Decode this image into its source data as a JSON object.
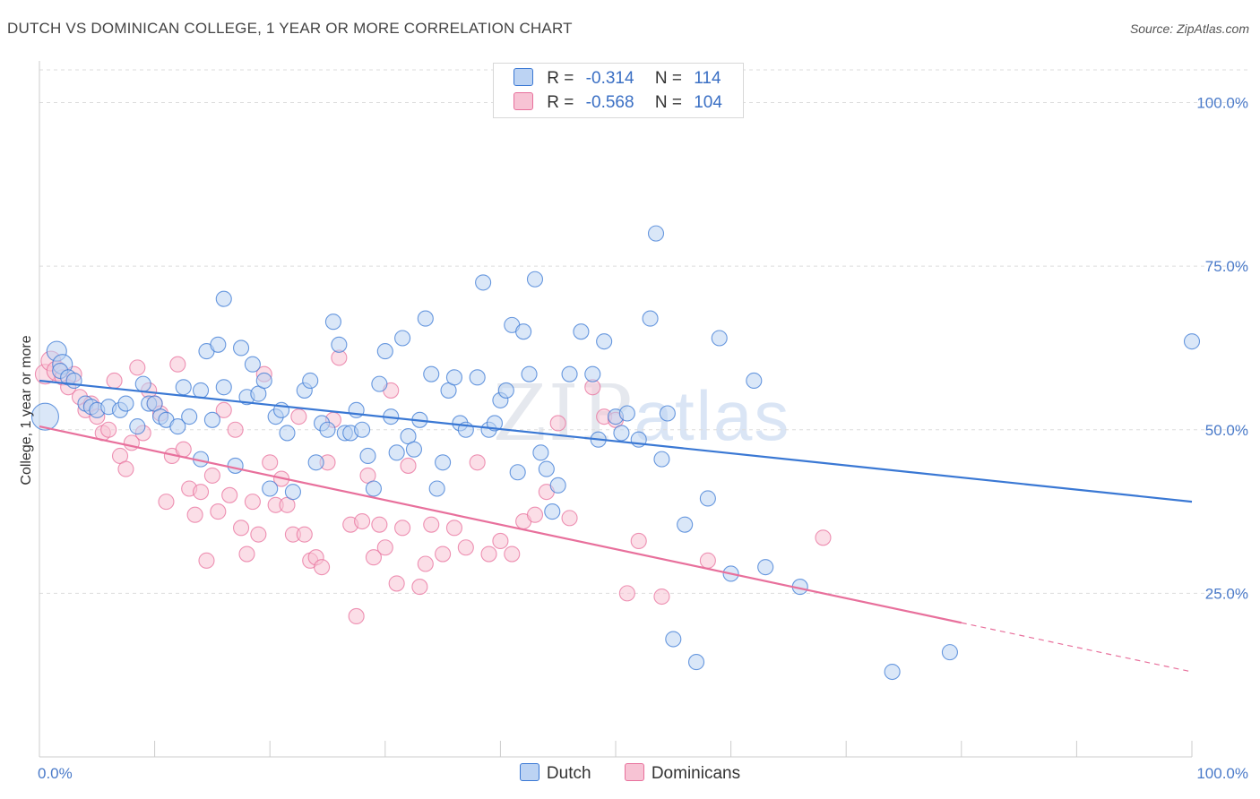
{
  "title": "DUTCH VS DOMINICAN COLLEGE, 1 YEAR OR MORE CORRELATION CHART",
  "source": "Source: ZipAtlas.com",
  "watermark": {
    "zip": "ZIP",
    "atlas": "atlas"
  },
  "colors": {
    "dutch": "#3a78d4",
    "dutch_fill": "#bcd3f3",
    "dominican": "#e8709c",
    "dominican_fill": "#f7c3d4",
    "tick": "#4a7ac9",
    "grid": "#dddddd"
  },
  "legend": [
    {
      "r_label": "R =",
      "r_value": "-0.314",
      "n_label": "N =",
      "n_value": "114"
    },
    {
      "r_label": "R =",
      "r_value": "-0.568",
      "n_label": "N =",
      "n_value": "104"
    }
  ],
  "bottom_legend": [
    "Dutch",
    "Dominicans"
  ],
  "chart_data": {
    "type": "scatter",
    "ylabel": "College, 1 year or more",
    "xlim": [
      0,
      100
    ],
    "ylim": [
      0,
      105
    ],
    "x_tick_labels": [
      "0.0%",
      "100.0%"
    ],
    "y_ticks": [
      25,
      50,
      75,
      100
    ],
    "y_tick_labels": [
      "25.0%",
      "50.0%",
      "75.0%",
      "100.0%"
    ],
    "grid": true,
    "series": [
      {
        "name": "Dutch",
        "trend": {
          "x": [
            0,
            100
          ],
          "y": [
            57.5,
            39.0
          ],
          "dashed_from": null
        },
        "points": [
          [
            0.5,
            52
          ],
          [
            1.5,
            62
          ],
          [
            2,
            60
          ],
          [
            1.8,
            59
          ],
          [
            2.5,
            58
          ],
          [
            3,
            57.5
          ],
          [
            4,
            54
          ],
          [
            4.5,
            53.5
          ],
          [
            5,
            53
          ],
          [
            6,
            53.5
          ],
          [
            7,
            53
          ],
          [
            7.5,
            54
          ],
          [
            8.5,
            50.5
          ],
          [
            9,
            57
          ],
          [
            9.5,
            54
          ],
          [
            10,
            54
          ],
          [
            10.5,
            52
          ],
          [
            11,
            51.5
          ],
          [
            12,
            50.5
          ],
          [
            12.5,
            56.5
          ],
          [
            13,
            52
          ],
          [
            14,
            56
          ],
          [
            14,
            45.5
          ],
          [
            14.5,
            62
          ],
          [
            15,
            51.5
          ],
          [
            15.5,
            63
          ],
          [
            16,
            56.5
          ],
          [
            16,
            70
          ],
          [
            17,
            44.5
          ],
          [
            17.5,
            62.5
          ],
          [
            18,
            55
          ],
          [
            18.5,
            60
          ],
          [
            19,
            55.5
          ],
          [
            19.5,
            57.5
          ],
          [
            20,
            41
          ],
          [
            20.5,
            52
          ],
          [
            21,
            53
          ],
          [
            21.5,
            49.5
          ],
          [
            22,
            40.5
          ],
          [
            23,
            56
          ],
          [
            23.5,
            57.5
          ],
          [
            24,
            45
          ],
          [
            24.5,
            51
          ],
          [
            25,
            50
          ],
          [
            25.5,
            66.5
          ],
          [
            26,
            63
          ],
          [
            26.5,
            49.5
          ],
          [
            27,
            49.5
          ],
          [
            27.5,
            53
          ],
          [
            28,
            50
          ],
          [
            28.5,
            46
          ],
          [
            29,
            41
          ],
          [
            29.5,
            57
          ],
          [
            30,
            62
          ],
          [
            30.5,
            52
          ],
          [
            31,
            46.5
          ],
          [
            31.5,
            64
          ],
          [
            32,
            49
          ],
          [
            32.5,
            47
          ],
          [
            33,
            51.5
          ],
          [
            33.5,
            67
          ],
          [
            34,
            58.5
          ],
          [
            34.5,
            41
          ],
          [
            35,
            45
          ],
          [
            35.5,
            56
          ],
          [
            36,
            58
          ],
          [
            36.5,
            51
          ],
          [
            37,
            50
          ],
          [
            38,
            58
          ],
          [
            38.5,
            72.5
          ],
          [
            39,
            50
          ],
          [
            39.5,
            51
          ],
          [
            40,
            54.5
          ],
          [
            40.5,
            56
          ],
          [
            41,
            66
          ],
          [
            41.5,
            43.5
          ],
          [
            42,
            65
          ],
          [
            42.5,
            58.5
          ],
          [
            43,
            73
          ],
          [
            43.5,
            46.5
          ],
          [
            44,
            44
          ],
          [
            44.5,
            37.5
          ],
          [
            45,
            41.5
          ],
          [
            46,
            58.5
          ],
          [
            47,
            65
          ],
          [
            48,
            58.5
          ],
          [
            48.5,
            48.5
          ],
          [
            49,
            63.5
          ],
          [
            50,
            52
          ],
          [
            50.5,
            49.5
          ],
          [
            51,
            52.5
          ],
          [
            52,
            48.5
          ],
          [
            53,
            67
          ],
          [
            53.5,
            80
          ],
          [
            54,
            45.5
          ],
          [
            54.5,
            52.5
          ],
          [
            55,
            18
          ],
          [
            56,
            35.5
          ],
          [
            57,
            14.5
          ],
          [
            58,
            39.5
          ],
          [
            59,
            64
          ],
          [
            60,
            28
          ],
          [
            62,
            57.5
          ],
          [
            63,
            29
          ],
          [
            66,
            26
          ],
          [
            74,
            13
          ],
          [
            79,
            16
          ],
          [
            100,
            63.5
          ]
        ]
      },
      {
        "name": "Dominicans",
        "trend": {
          "x": [
            0,
            100
          ],
          "y": [
            50.5,
            13.0
          ],
          "dashed_from": 80
        },
        "points": [
          [
            0.5,
            58.5
          ],
          [
            1,
            60.5
          ],
          [
            1.5,
            59
          ],
          [
            2,
            58
          ],
          [
            2.5,
            56.5
          ],
          [
            3,
            58.5
          ],
          [
            3.5,
            55
          ],
          [
            4,
            53
          ],
          [
            4.5,
            54
          ],
          [
            5,
            52
          ],
          [
            5.5,
            49.5
          ],
          [
            6,
            50
          ],
          [
            6.5,
            57.5
          ],
          [
            7,
            46
          ],
          [
            7.5,
            44
          ],
          [
            8,
            48
          ],
          [
            8.5,
            59.5
          ],
          [
            9,
            49.5
          ],
          [
            9.5,
            56
          ],
          [
            10,
            54
          ],
          [
            10.5,
            52.5
          ],
          [
            11,
            39
          ],
          [
            11.5,
            46
          ],
          [
            12,
            60
          ],
          [
            12.5,
            47
          ],
          [
            13,
            41
          ],
          [
            13.5,
            37
          ],
          [
            14,
            40.5
          ],
          [
            14.5,
            30
          ],
          [
            15,
            43
          ],
          [
            15.5,
            37.5
          ],
          [
            16,
            53
          ],
          [
            16.5,
            40
          ],
          [
            17,
            50
          ],
          [
            17.5,
            35
          ],
          [
            18,
            31
          ],
          [
            18.5,
            39
          ],
          [
            19,
            34
          ],
          [
            19.5,
            58.5
          ],
          [
            20,
            45
          ],
          [
            20.5,
            38.5
          ],
          [
            21,
            42.5
          ],
          [
            21.5,
            38.5
          ],
          [
            22,
            34
          ],
          [
            22.5,
            52
          ],
          [
            23,
            34
          ],
          [
            23.5,
            30
          ],
          [
            24,
            30.5
          ],
          [
            24.5,
            29
          ],
          [
            25,
            45
          ],
          [
            25.5,
            51.5
          ],
          [
            26,
            61
          ],
          [
            27,
            35.5
          ],
          [
            27.5,
            21.5
          ],
          [
            28,
            36
          ],
          [
            28.5,
            43
          ],
          [
            29,
            30.5
          ],
          [
            29.5,
            35.5
          ],
          [
            30,
            32
          ],
          [
            30.5,
            56
          ],
          [
            31,
            26.5
          ],
          [
            31.5,
            35
          ],
          [
            32,
            44.5
          ],
          [
            33,
            26
          ],
          [
            33.5,
            29.5
          ],
          [
            34,
            35.5
          ],
          [
            35,
            31
          ],
          [
            36,
            35
          ],
          [
            37,
            32
          ],
          [
            38,
            45
          ],
          [
            39,
            31
          ],
          [
            40,
            33
          ],
          [
            41,
            31
          ],
          [
            42,
            36
          ],
          [
            43,
            37
          ],
          [
            44,
            40.5
          ],
          [
            45,
            51
          ],
          [
            46,
            36.5
          ],
          [
            48,
            56.5
          ],
          [
            49,
            52
          ],
          [
            50,
            51.5
          ],
          [
            51,
            25
          ],
          [
            52,
            33
          ],
          [
            54,
            24.5
          ],
          [
            58,
            30
          ],
          [
            68,
            33.5
          ]
        ]
      }
    ]
  }
}
